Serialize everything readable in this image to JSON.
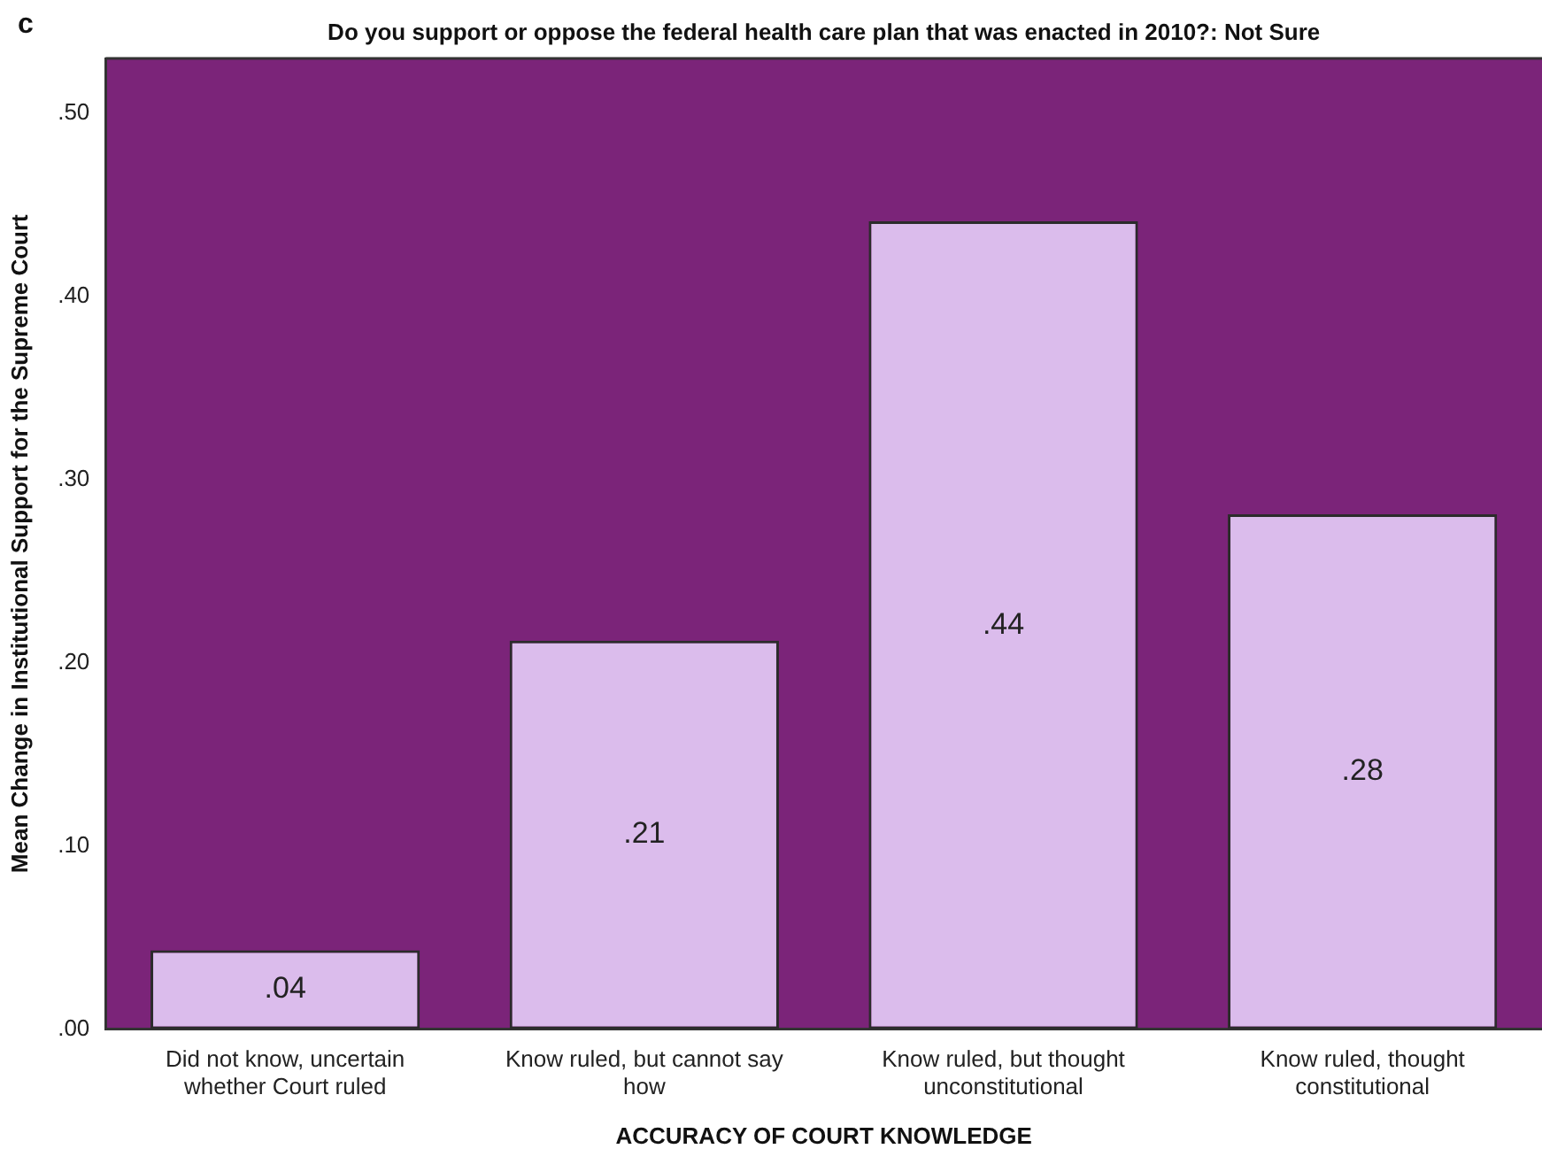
{
  "chart_data": {
    "type": "bar",
    "title": "Do you support or oppose the federal health care plan that was enacted in 2010?: Not Sure",
    "xlabel": "ACCURACY OF COURT KNOWLEDGE",
    "ylabel": "Mean Change in Institutional Support for the Supreme Court",
    "annotations": [
      "c"
    ],
    "categories": [
      "Did not know, uncertain whether Court ruled",
      "Know ruled, but cannot say how",
      "Know ruled, but thought unconstitutional",
      "Know ruled, thought constitutional"
    ],
    "values": [
      0.043,
      0.212,
      0.441,
      0.281
    ],
    "value_labels": [
      ".04",
      ".21",
      ".44",
      ".28"
    ],
    "color": "#dbbcec",
    "ylim": [
      0,
      0.53
    ],
    "yticks": [
      {
        "value": 0,
        "label": ".00"
      },
      {
        "value": 0.1,
        "label": ".10"
      },
      {
        "value": 0.2,
        "label": ".20"
      },
      {
        "value": 0.3,
        "label": ".30"
      },
      {
        "value": 0.4,
        "label": ".40"
      },
      {
        "value": 0.5,
        "label": ".50"
      }
    ],
    "grid": false,
    "legend": false
  }
}
